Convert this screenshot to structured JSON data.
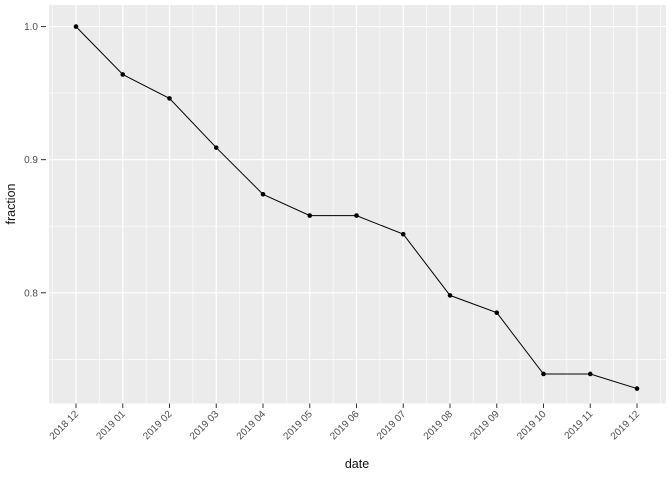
{
  "figure": {
    "background": "#FFFFFF"
  },
  "chart_data": {
    "type": "line",
    "title": "",
    "xlabel": "date",
    "ylabel": "fraction",
    "categories": [
      "2018 12",
      "2019 01",
      "2019 02",
      "2019 03",
      "2019 04",
      "2019 05",
      "2019 06",
      "2019 07",
      "2019 08",
      "2019 09",
      "2019 10",
      "2019 11",
      "2019 12"
    ],
    "series": [
      {
        "name": "fraction",
        "values": [
          1.0,
          0.964,
          0.946,
          0.909,
          0.874,
          0.858,
          0.858,
          0.844,
          0.798,
          0.785,
          0.739,
          0.739,
          0.728
        ]
      }
    ],
    "ylim": [
      0.7168,
      1.0162
    ],
    "y_major_ticks": {
      "values": [
        1.0,
        0.9,
        0.8
      ],
      "labels": [
        "1.0",
        "0.9",
        "0.8"
      ]
    },
    "y_minor_ticks": [
      0.95,
      0.85,
      0.75
    ],
    "x_tick_angle_deg": 45,
    "grid": "major+minor",
    "legend": "none",
    "marker": "filled-circle",
    "style": {
      "panel_background": "#EBEBEB",
      "grid_color": "#FFFFFF",
      "line_color": "#000000",
      "point_color": "#000000",
      "tick_mark_color": "#333333",
      "tick_label_color": "#4D4D4D",
      "axis_title_color": "#111111"
    }
  }
}
